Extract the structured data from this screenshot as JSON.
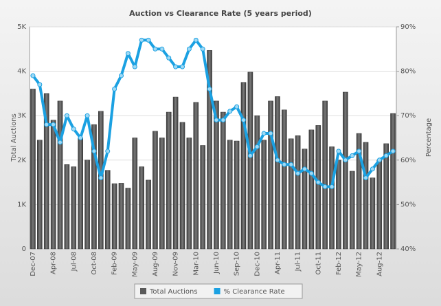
{
  "chart_data": {
    "type": "bar-line",
    "title": "Auction vs Clearance Rate (5 years period)",
    "y_label": "Total Auctions",
    "y2_label": "Percentage",
    "categories": [
      "Dec-07",
      null,
      null,
      "Apr-08",
      null,
      null,
      "Jul-08",
      null,
      null,
      "Oct-08",
      null,
      null,
      "Feb-09",
      null,
      null,
      "May-09",
      null,
      null,
      "Aug-09",
      null,
      null,
      "Nov-09",
      null,
      null,
      "Mar-10",
      null,
      null,
      "Jun-10",
      null,
      null,
      "Sep-10",
      null,
      null,
      "Dec-10",
      null,
      null,
      "Apr-11",
      null,
      null,
      "Jul-11",
      null,
      null,
      "Oct-11",
      null,
      null,
      "Feb-12",
      null,
      null,
      "May-12",
      null,
      null,
      "Aug-12",
      null,
      null
    ],
    "series": [
      {
        "name": "Total Auctions",
        "color": "#5a5a5a",
        "values": [
          3600,
          2450,
          3500,
          2900,
          3330,
          1900,
          1850,
          2500,
          2000,
          2800,
          3100,
          1770,
          1470,
          1480,
          1370,
          2500,
          1850,
          1550,
          2650,
          2500,
          3080,
          3420,
          2850,
          2500,
          3300,
          2330,
          4470,
          3330,
          3080,
          2450,
          2430,
          3750,
          3980,
          3000,
          2450,
          3330,
          3430,
          3130,
          2480,
          2550,
          2250,
          2680,
          2780,
          3330,
          2300,
          2000,
          3530,
          1750,
          2600,
          2400,
          1600,
          2000,
          2370,
          3050
        ]
      },
      {
        "name": "% Clearance Rate",
        "color": "#1ba1e2",
        "axis": "y2",
        "values": [
          79,
          77,
          68,
          68,
          64,
          70,
          67,
          65,
          70,
          62,
          56,
          62,
          76,
          79,
          84,
          81,
          87,
          87,
          85,
          85,
          83,
          81,
          81,
          85,
          87,
          85,
          76,
          69,
          69,
          71,
          72,
          69,
          61,
          63,
          66,
          66,
          60,
          59,
          59,
          57,
          58,
          57,
          55,
          54,
          54,
          62,
          60,
          61,
          62,
          56,
          58,
          60,
          61,
          62
        ]
      }
    ],
    "ylim": [
      0,
      5000
    ],
    "yticks": [
      0,
      {
        "value": 1000,
        "label": "1K"
      },
      {
        "value": 2000,
        "label": "2K"
      },
      {
        "value": 3000,
        "label": "3K"
      },
      {
        "value": 4000,
        "label": "4K"
      },
      {
        "value": 5000,
        "label": "5K"
      }
    ],
    "y2lim": [
      40,
      90
    ],
    "y2ticks": [
      {
        "value": 40,
        "label": "40%"
      },
      {
        "value": 50,
        "label": "50%"
      },
      {
        "value": 60,
        "label": "60%"
      },
      {
        "value": 70,
        "label": "70%"
      },
      {
        "value": 80,
        "label": "80%"
      },
      {
        "value": 90,
        "label": "90%"
      }
    ],
    "grid": true,
    "legend": "bottom"
  }
}
